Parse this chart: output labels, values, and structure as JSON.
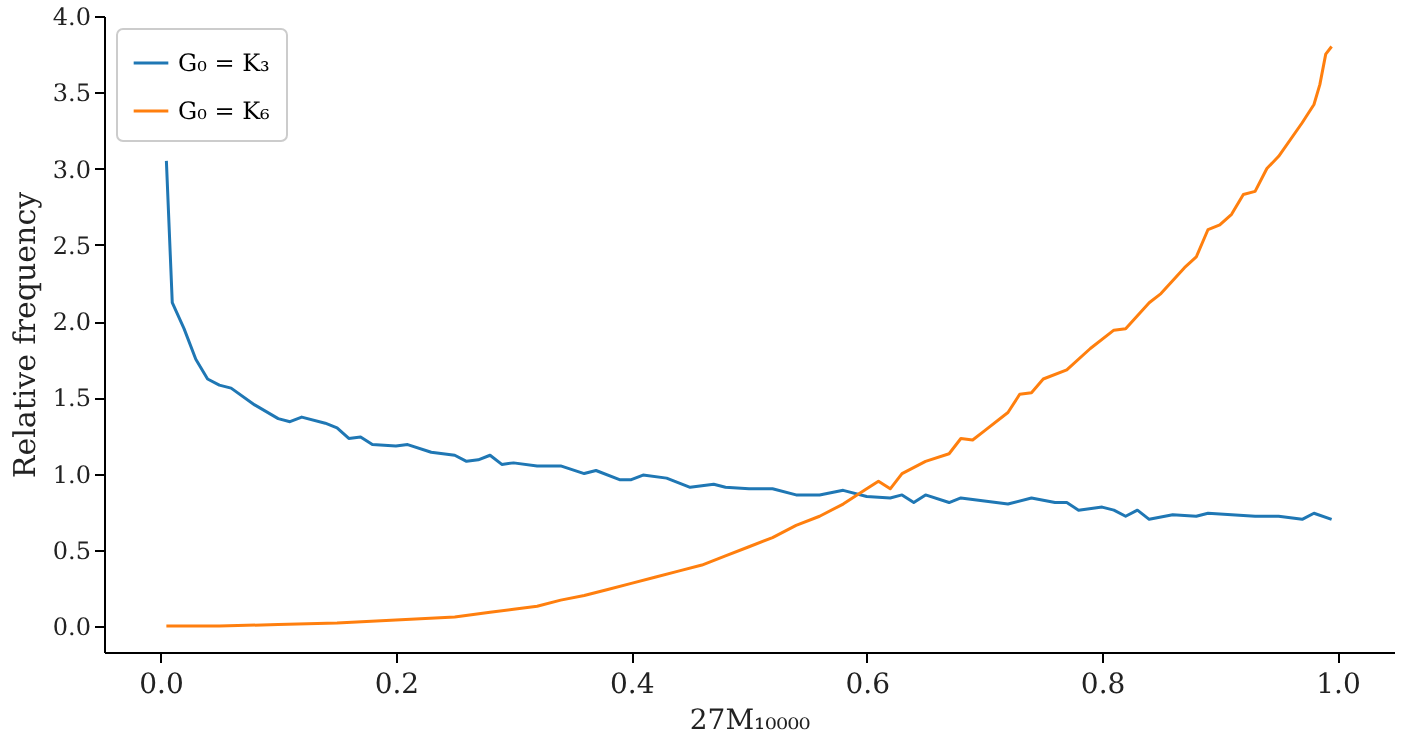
{
  "chart_data": {
    "type": "line",
    "xlabel": "27M₁₀₀₀₀",
    "ylabel": "Relative frequency",
    "xlim": [
      -0.048,
      1.048
    ],
    "xticks": [
      {
        "value": 0,
        "label": "0.0"
      },
      0.2,
      0.4,
      0.6,
      0.8,
      {
        "value": 1,
        "label": "1.0"
      }
    ],
    "ylim": [
      -0.17,
      4.0
    ],
    "yticks": [
      {
        "value": 0,
        "label": "0.0"
      },
      0.5,
      {
        "value": 1,
        "label": "1.0"
      },
      1.5,
      {
        "value": 2,
        "label": "2.0"
      },
      2.5,
      {
        "value": 3,
        "label": "3.0"
      },
      3.5,
      {
        "value": 4,
        "label": "4.0"
      }
    ],
    "grid": false,
    "legend": "top left",
    "series": [
      {
        "name": "G₀ = K₃",
        "color": "#1f77b4",
        "x": [
          0.005,
          0.01,
          0.02,
          0.03,
          0.04,
          0.05,
          0.06,
          0.08,
          0.1,
          0.11,
          0.12,
          0.14,
          0.15,
          0.16,
          0.17,
          0.18,
          0.2,
          0.21,
          0.23,
          0.25,
          0.26,
          0.27,
          0.28,
          0.29,
          0.3,
          0.32,
          0.34,
          0.36,
          0.37,
          0.39,
          0.4,
          0.41,
          0.43,
          0.45,
          0.47,
          0.48,
          0.5,
          0.52,
          0.54,
          0.56,
          0.58,
          0.6,
          0.62,
          0.63,
          0.64,
          0.65,
          0.67,
          0.68,
          0.7,
          0.72,
          0.74,
          0.76,
          0.77,
          0.78,
          0.8,
          0.81,
          0.82,
          0.83,
          0.84,
          0.86,
          0.88,
          0.89,
          0.91,
          0.93,
          0.95,
          0.97,
          0.98,
          0.995
        ],
        "values": [
          3.05,
          2.12,
          1.95,
          1.75,
          1.62,
          1.58,
          1.56,
          1.45,
          1.36,
          1.34,
          1.37,
          1.33,
          1.3,
          1.23,
          1.24,
          1.19,
          1.18,
          1.19,
          1.14,
          1.12,
          1.08,
          1.09,
          1.12,
          1.06,
          1.07,
          1.05,
          1.05,
          1.0,
          1.02,
          0.96,
          0.96,
          0.99,
          0.97,
          0.91,
          0.93,
          0.91,
          0.9,
          0.9,
          0.86,
          0.86,
          0.89,
          0.85,
          0.84,
          0.86,
          0.81,
          0.86,
          0.81,
          0.84,
          0.82,
          0.8,
          0.84,
          0.81,
          0.81,
          0.76,
          0.78,
          0.76,
          0.72,
          0.76,
          0.7,
          0.73,
          0.72,
          0.74,
          0.73,
          0.72,
          0.72,
          0.7,
          0.74,
          0.7
        ]
      },
      {
        "name": "G₀ = K₆",
        "color": "#ff7f0e",
        "x": [
          0.005,
          0.05,
          0.1,
          0.15,
          0.2,
          0.25,
          0.28,
          0.3,
          0.32,
          0.34,
          0.36,
          0.38,
          0.4,
          0.42,
          0.44,
          0.46,
          0.48,
          0.5,
          0.52,
          0.54,
          0.56,
          0.58,
          0.6,
          0.61,
          0.62,
          0.63,
          0.65,
          0.67,
          0.68,
          0.69,
          0.7,
          0.72,
          0.73,
          0.74,
          0.75,
          0.77,
          0.79,
          0.81,
          0.82,
          0.84,
          0.85,
          0.87,
          0.88,
          0.89,
          0.9,
          0.91,
          0.92,
          0.93,
          0.94,
          0.95,
          0.97,
          0.98,
          0.985,
          0.99,
          0.995
        ],
        "values": [
          0.0,
          0.0,
          0.01,
          0.02,
          0.04,
          0.06,
          0.09,
          0.11,
          0.13,
          0.17,
          0.2,
          0.24,
          0.28,
          0.32,
          0.36,
          0.4,
          0.46,
          0.52,
          0.58,
          0.66,
          0.72,
          0.8,
          0.9,
          0.95,
          0.9,
          1.0,
          1.08,
          1.13,
          1.23,
          1.22,
          1.28,
          1.4,
          1.52,
          1.53,
          1.62,
          1.68,
          1.82,
          1.94,
          1.95,
          2.12,
          2.18,
          2.35,
          2.42,
          2.6,
          2.63,
          2.7,
          2.83,
          2.85,
          3.0,
          3.08,
          3.3,
          3.42,
          3.55,
          3.75,
          3.8
        ]
      }
    ]
  }
}
